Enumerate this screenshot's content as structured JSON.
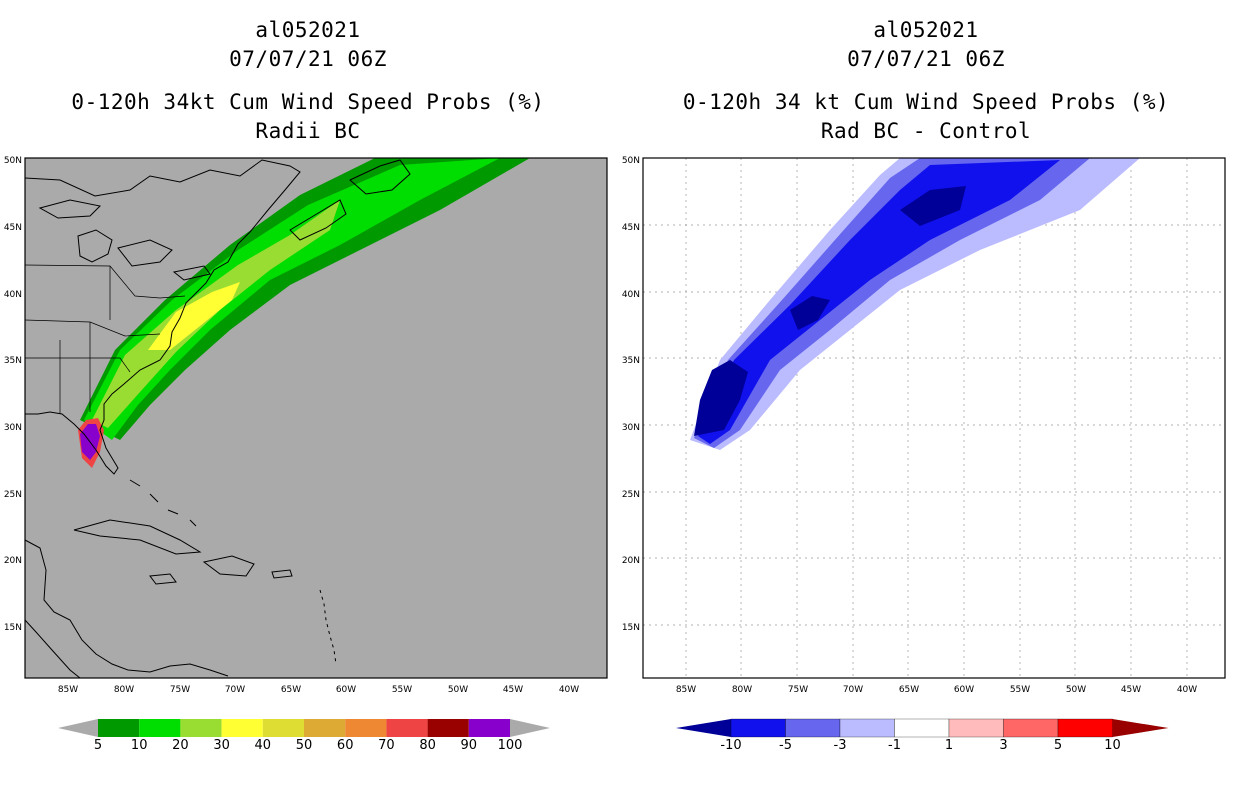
{
  "left_panel": {
    "storm_id": "al052021",
    "datetime": "07/07/21 06Z",
    "title": "0-120h 34kt Cum Wind Speed Probs (%)",
    "subtitle": "Radii BC",
    "colorbar": {
      "labels": [
        "5",
        "10",
        "20",
        "30",
        "40",
        "50",
        "60",
        "70",
        "80",
        "90",
        "100"
      ],
      "colors": [
        "#009900",
        "#00dd00",
        "#99dd33",
        "#ffff33",
        "#dddd33",
        "#ddaa33",
        "#ee8833",
        "#ee4444",
        "#990000",
        "#8800cc"
      ],
      "end_color": "#aaaaaa"
    }
  },
  "right_panel": {
    "storm_id": "al052021",
    "datetime": "07/07/21 06Z",
    "title": "0-120h 34 kt Cum Wind Speed Probs (%)",
    "subtitle": "Rad BC - Control",
    "colorbar": {
      "labels": [
        "-10",
        "-5",
        "-3",
        "-1",
        "1",
        "3",
        "5",
        "10"
      ],
      "colors": [
        "#000099",
        "#1111ee",
        "#6666ee",
        "#bbbbff",
        "#ffffff",
        "#ffbbbb",
        "#ff6666",
        "#ff0000",
        "#990000"
      ]
    }
  },
  "axes": {
    "lat_labels": [
      "50N",
      "45N",
      "40N",
      "35N",
      "30N",
      "25N",
      "20N",
      "15N"
    ],
    "lon_labels": [
      "85W",
      "80W",
      "75W",
      "70W",
      "65W",
      "60W",
      "55W",
      "50W",
      "45W",
      "40W"
    ]
  },
  "colors": {
    "background_left": "#aaaaaa",
    "background_right": "#ffffff"
  }
}
